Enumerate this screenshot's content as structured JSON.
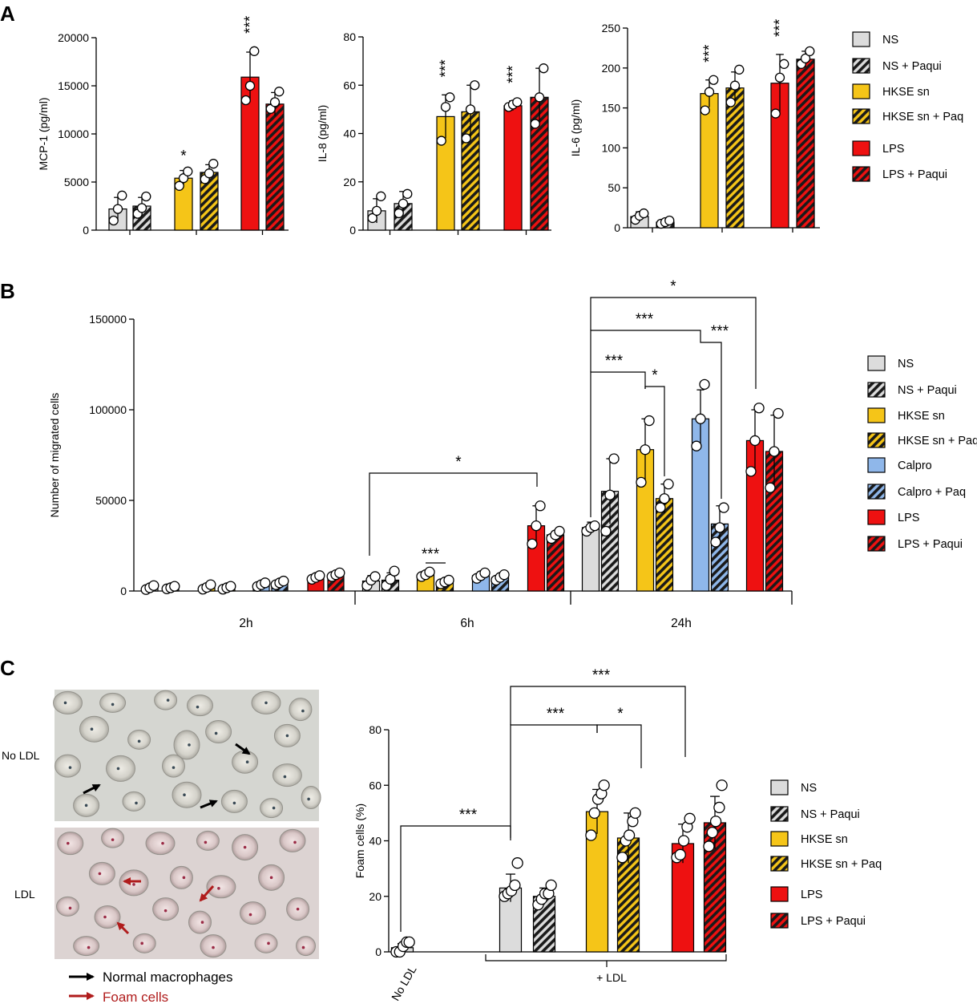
{
  "figure": {
    "panel_labels": [
      "A",
      "B",
      "C"
    ]
  },
  "colors": {
    "ns": "#dcdcdc",
    "hkse": "#f5c518",
    "calpro": "#8fb7ea",
    "lps": "#ee1111",
    "dark_hatch": "#1a1a1a",
    "normal_arrow": "#000000",
    "foam_arrow": "#b01c1c"
  },
  "chart_data": [
    {
      "id": "A1",
      "type": "bar",
      "ylabel": "MCP-1 (pg/ml)",
      "ylim": [
        0,
        20000
      ],
      "yticks": [
        0,
        5000,
        10000,
        15000,
        20000
      ],
      "groups": [
        "NS",
        "HKSE sn",
        "LPS"
      ],
      "series": [
        {
          "name": "NS",
          "values": [
            2200,
            null,
            null
          ],
          "sd": [
            1200,
            null,
            null
          ],
          "points": [
            [
              1000,
              2200,
              3600
            ],
            null,
            null
          ]
        },
        {
          "name": "NS + Paqui",
          "values": [
            2500,
            null,
            null
          ],
          "sd": [
            900,
            null,
            null
          ],
          "points": [
            [
              1700,
              2300,
              3500
            ],
            null,
            null
          ]
        },
        {
          "name": "HKSE sn",
          "values": [
            null,
            5400,
            null
          ],
          "sd": [
            null,
            800,
            null
          ],
          "points": [
            null,
            [
              4600,
              5400,
              6100
            ],
            null
          ]
        },
        {
          "name": "HKSE sn + Paq",
          "values": [
            null,
            6000,
            null
          ],
          "sd": [
            null,
            800,
            null
          ],
          "points": [
            null,
            [
              5300,
              5900,
              6900
            ],
            null
          ]
        },
        {
          "name": "LPS",
          "values": [
            null,
            null,
            15900
          ],
          "sd": [
            null,
            null,
            2600
          ],
          "points": [
            null,
            null,
            [
              13500,
              15000,
              18600
            ]
          ]
        },
        {
          "name": "LPS + Paqui",
          "values": [
            null,
            null,
            13100
          ],
          "sd": [
            null,
            null,
            1200
          ],
          "points": [
            null,
            null,
            [
              12600,
              13300,
              14400
            ]
          ]
        }
      ],
      "significance": [
        {
          "bar": "HKSE sn",
          "label": "*"
        },
        {
          "bar": "LPS",
          "label": "***"
        }
      ]
    },
    {
      "id": "A2",
      "type": "bar",
      "ylabel": "IL-8 (pg/ml)",
      "ylim": [
        0,
        80
      ],
      "yticks": [
        0,
        20,
        40,
        60,
        80
      ],
      "groups": [
        "NS",
        "HKSE sn",
        "LPS"
      ],
      "series": [
        {
          "name": "NS",
          "values": [
            8,
            null,
            null
          ],
          "sd": [
            5,
            null,
            null
          ],
          "points": [
            [
              5,
              8,
              14
            ],
            null,
            null
          ]
        },
        {
          "name": "NS + Paqui",
          "values": [
            11,
            null,
            null
          ],
          "sd": [
            5,
            null,
            null
          ],
          "points": [
            [
              7,
              11,
              15
            ],
            null,
            null
          ]
        },
        {
          "name": "HKSE sn",
          "values": [
            null,
            47,
            null
          ],
          "sd": [
            null,
            9,
            null
          ],
          "points": [
            null,
            [
              37,
              51,
              55
            ],
            null
          ]
        },
        {
          "name": "HKSE sn + Paq",
          "values": [
            null,
            49,
            null
          ],
          "sd": [
            null,
            11,
            null
          ],
          "points": [
            null,
            [
              38,
              50,
              60
            ],
            null
          ]
        },
        {
          "name": "LPS",
          "values": [
            null,
            null,
            51.5
          ],
          "sd": [
            null,
            null,
            2
          ],
          "points": [
            null,
            null,
            [
              51,
              52,
              53
            ]
          ]
        },
        {
          "name": "LPS + Paqui",
          "values": [
            null,
            null,
            55
          ],
          "sd": [
            null,
            null,
            12
          ],
          "points": [
            null,
            null,
            [
              44,
              55,
              67
            ]
          ]
        }
      ],
      "significance": [
        {
          "bar": "HKSE sn",
          "label": "***"
        },
        {
          "bar": "LPS",
          "label": "***"
        }
      ]
    },
    {
      "id": "A3",
      "type": "bar",
      "ylabel": "IL-6 (pg/ml)",
      "ylim": [
        0,
        250
      ],
      "yticks": [
        0,
        50,
        100,
        150,
        200,
        250
      ],
      "groups": [
        "NS",
        "HKSE sn",
        "LPS"
      ],
      "series": [
        {
          "name": "NS",
          "values": [
            14,
            null,
            null
          ],
          "sd": [
            6,
            null,
            null
          ],
          "points": [
            [
              10,
              15,
              18
            ],
            null,
            null
          ]
        },
        {
          "name": "NS + Paqui",
          "values": [
            7,
            null,
            null
          ],
          "sd": [
            3,
            null,
            null
          ],
          "points": [
            [
              5,
              7,
              9
            ],
            null,
            null
          ]
        },
        {
          "name": "HKSE sn",
          "values": [
            null,
            168,
            null
          ],
          "sd": [
            null,
            17,
            null
          ],
          "points": [
            null,
            [
              147,
              170,
              185
            ],
            null
          ]
        },
        {
          "name": "HKSE sn + Paq",
          "values": [
            null,
            175,
            null
          ],
          "sd": [
            null,
            20,
            null
          ],
          "points": [
            null,
            [
              157,
              178,
              198
            ],
            null
          ]
        },
        {
          "name": "LPS",
          "values": [
            null,
            null,
            181
          ],
          "sd": [
            null,
            null,
            36
          ],
          "points": [
            null,
            null,
            [
              143,
              188,
              205
            ]
          ]
        },
        {
          "name": "LPS + Paqui",
          "values": [
            null,
            null,
            211
          ],
          "sd": [
            null,
            null,
            10
          ],
          "points": [
            null,
            null,
            [
              205,
              212,
              221
            ]
          ]
        }
      ],
      "significance": [
        {
          "bar": "HKSE sn",
          "label": "***"
        },
        {
          "bar": "LPS",
          "label": "***"
        }
      ]
    },
    {
      "id": "B",
      "type": "bar",
      "ylabel": "Number of migrated cells",
      "ylim": [
        0,
        150000
      ],
      "yticks": [
        0,
        50000,
        100000,
        150000
      ],
      "timepoints": [
        "2h",
        "6h",
        "24h"
      ],
      "series": [
        {
          "name": "NS",
          "values": [
            1800,
            5500,
            35000
          ],
          "sd": [
            1200,
            3000,
            3000
          ],
          "points": [
            [
              800,
              1800,
              3000
            ],
            [
              3000,
              6000,
              8000
            ],
            [
              33000,
              35000,
              36000
            ]
          ]
        },
        {
          "name": "NS + Paqui",
          "values": [
            1800,
            6000,
            55000
          ],
          "sd": [
            800,
            4000,
            18000
          ],
          "points": [
            [
              1200,
              1800,
              2600
            ],
            [
              3000,
              6500,
              11000
            ],
            [
              33000,
              53000,
              73000
            ]
          ]
        },
        {
          "name": "HKSE sn",
          "values": [
            2000,
            9000,
            78000
          ],
          "sd": [
            1000,
            2000,
            17000
          ],
          "points": [
            [
              1000,
              2000,
              3500
            ],
            [
              8000,
              9000,
              10500
            ],
            [
              60000,
              78000,
              94000
            ]
          ]
        },
        {
          "name": "HKSE sn + Paq",
          "values": [
            1800,
            5000,
            51000
          ],
          "sd": [
            800,
            1000,
            8000
          ],
          "points": [
            [
              1000,
              1800,
              2600
            ],
            [
              4000,
              5000,
              6000
            ],
            [
              46000,
              51000,
              59000
            ]
          ]
        },
        {
          "name": "Calpro",
          "values": [
            3500,
            8500,
            95000
          ],
          "sd": [
            1000,
            2000,
            16000
          ],
          "points": [
            [
              2500,
              3500,
              4500
            ],
            [
              7000,
              8500,
              10000
            ],
            [
              80000,
              95000,
              114000
            ]
          ]
        },
        {
          "name": "Calpro + Paq",
          "values": [
            4500,
            7500,
            37000
          ],
          "sd": [
            1000,
            1500,
            10000
          ],
          "points": [
            [
              3500,
              4500,
              5500
            ],
            [
              6000,
              7500,
              9000
            ],
            [
              27000,
              35000,
              46000
            ]
          ]
        },
        {
          "name": "LPS",
          "values": [
            7500,
            36000,
            83000
          ],
          "sd": [
            1500,
            11000,
            17000
          ],
          "points": [
            [
              6500,
              7500,
              8500
            ],
            [
              26000,
              36000,
              47000
            ],
            [
              66000,
              83000,
              101000
            ]
          ]
        },
        {
          "name": "LPS + Paqui",
          "values": [
            9000,
            31000,
            77000
          ],
          "sd": [
            1500,
            2000,
            20000
          ],
          "points": [
            [
              8000,
              9000,
              10000
            ],
            [
              29000,
              31000,
              33000
            ],
            [
              57000,
              77000,
              98000
            ]
          ]
        }
      ],
      "significance": [
        {
          "from": "NS 6h",
          "to": "LPS 6h",
          "label": "*"
        },
        {
          "from": "HKSE sn 6h",
          "to": "HKSE sn + Paq 6h",
          "label": "***"
        },
        {
          "from": "NS 24h",
          "to": "HKSE sn 24h",
          "label": "***"
        },
        {
          "from": "HKSE sn 24h",
          "to": "HKSE sn + Paq 24h",
          "label": "*"
        },
        {
          "from": "NS 24h",
          "to": "Calpro 24h",
          "label": "***"
        },
        {
          "from": "Calpro 24h",
          "to": "Calpro + Paq 24h",
          "label": "***"
        },
        {
          "from": "NS 24h",
          "to": "LPS 24h",
          "label": "*"
        }
      ]
    },
    {
      "id": "C",
      "type": "bar",
      "ylabel": "Foam cells (%)",
      "ylim": [
        0,
        80
      ],
      "yticks": [
        0,
        20,
        40,
        60,
        80
      ],
      "categories": [
        "No LDL",
        "NS",
        "NS + Paqui",
        "HKSE sn",
        "HKSE sn + Paq",
        "LPS",
        "LPS + Paqui"
      ],
      "group_label": "+ LDL",
      "values": [
        1.5,
        23,
        20,
        50.5,
        41,
        39,
        46.5
      ],
      "sd": [
        1.5,
        5,
        3,
        8,
        9,
        7,
        9.5
      ],
      "points": [
        [
          0,
          0,
          2,
          3.5,
          3.5
        ],
        [
          20,
          21,
          22,
          24,
          32
        ],
        [
          17,
          19,
          21,
          21,
          24
        ],
        [
          42,
          50,
          55,
          57,
          60
        ],
        [
          34,
          40,
          42,
          47,
          50
        ],
        [
          34,
          35,
          40,
          45,
          48
        ],
        [
          38,
          43,
          47,
          52,
          60
        ]
      ],
      "significance": [
        {
          "from": "No LDL",
          "to": "NS",
          "label": "***"
        },
        {
          "from": "NS",
          "to": "HKSE sn",
          "label": "***"
        },
        {
          "from": "HKSE sn",
          "to": "HKSE sn + Paq",
          "label": "*"
        },
        {
          "from": "NS",
          "to": "LPS",
          "label": "***"
        }
      ]
    }
  ],
  "legend_a": [
    "NS",
    "NS + Paqui",
    "HKSE sn",
    "HKSE sn + Paq",
    "LPS",
    "LPS + Paqui"
  ],
  "legend_b": [
    "NS",
    "NS + Paqui",
    "HKSE sn",
    "HKSE sn + Paq",
    "Calpro",
    "Calpro + Paq",
    "LPS",
    "LPS + Paqui"
  ],
  "legend_c": [
    "NS",
    "NS + Paqui",
    "HKSE sn",
    "HKSE sn + Paq",
    "LPS",
    "LPS + Paqui"
  ],
  "micrographs": {
    "top_label": "No LDL",
    "bottom_label": "LDL",
    "legend_normal": "Normal macrophages",
    "legend_foam": "Foam cells"
  }
}
